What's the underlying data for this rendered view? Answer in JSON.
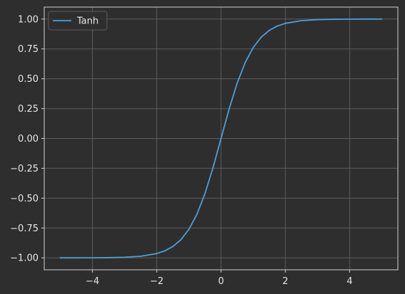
{
  "chart_data": {
    "type": "line",
    "title": "",
    "xlabel": "",
    "ylabel": "",
    "xlim": [
      -5.5,
      5.5
    ],
    "ylim": [
      -1.1,
      1.1
    ],
    "grid": true,
    "legend_position": "top-left",
    "x_ticks": [
      -4,
      -2,
      0,
      2,
      4
    ],
    "x_tick_labels": [
      "−4",
      "−2",
      "0",
      "2",
      "4"
    ],
    "y_ticks": [
      -1.0,
      -0.75,
      -0.5,
      -0.25,
      0.0,
      0.25,
      0.5,
      0.75,
      1.0
    ],
    "y_tick_labels": [
      "−1.00",
      "−0.75",
      "−0.50",
      "−0.25",
      "0.00",
      "0.25",
      "0.50",
      "0.75",
      "1.00"
    ],
    "series": [
      {
        "name": "Tanh",
        "color": "#4c9fd8",
        "x": [
          -5.0,
          -4.5,
          -4.0,
          -3.5,
          -3.0,
          -2.5,
          -2.0,
          -1.75,
          -1.5,
          -1.25,
          -1.0,
          -0.75,
          -0.5,
          -0.25,
          0.0,
          0.25,
          0.5,
          0.75,
          1.0,
          1.25,
          1.5,
          1.75,
          2.0,
          2.5,
          3.0,
          3.5,
          4.0,
          4.5,
          5.0
        ],
        "y": [
          -0.9999,
          -0.9998,
          -0.9993,
          -0.9982,
          -0.9951,
          -0.9866,
          -0.964,
          -0.9414,
          -0.9051,
          -0.8483,
          -0.7616,
          -0.6351,
          -0.4621,
          -0.2449,
          0.0,
          0.2449,
          0.4621,
          0.6351,
          0.7616,
          0.8483,
          0.9051,
          0.9414,
          0.964,
          0.9866,
          0.9951,
          0.9982,
          0.9993,
          0.9998,
          0.9999
        ]
      }
    ]
  }
}
